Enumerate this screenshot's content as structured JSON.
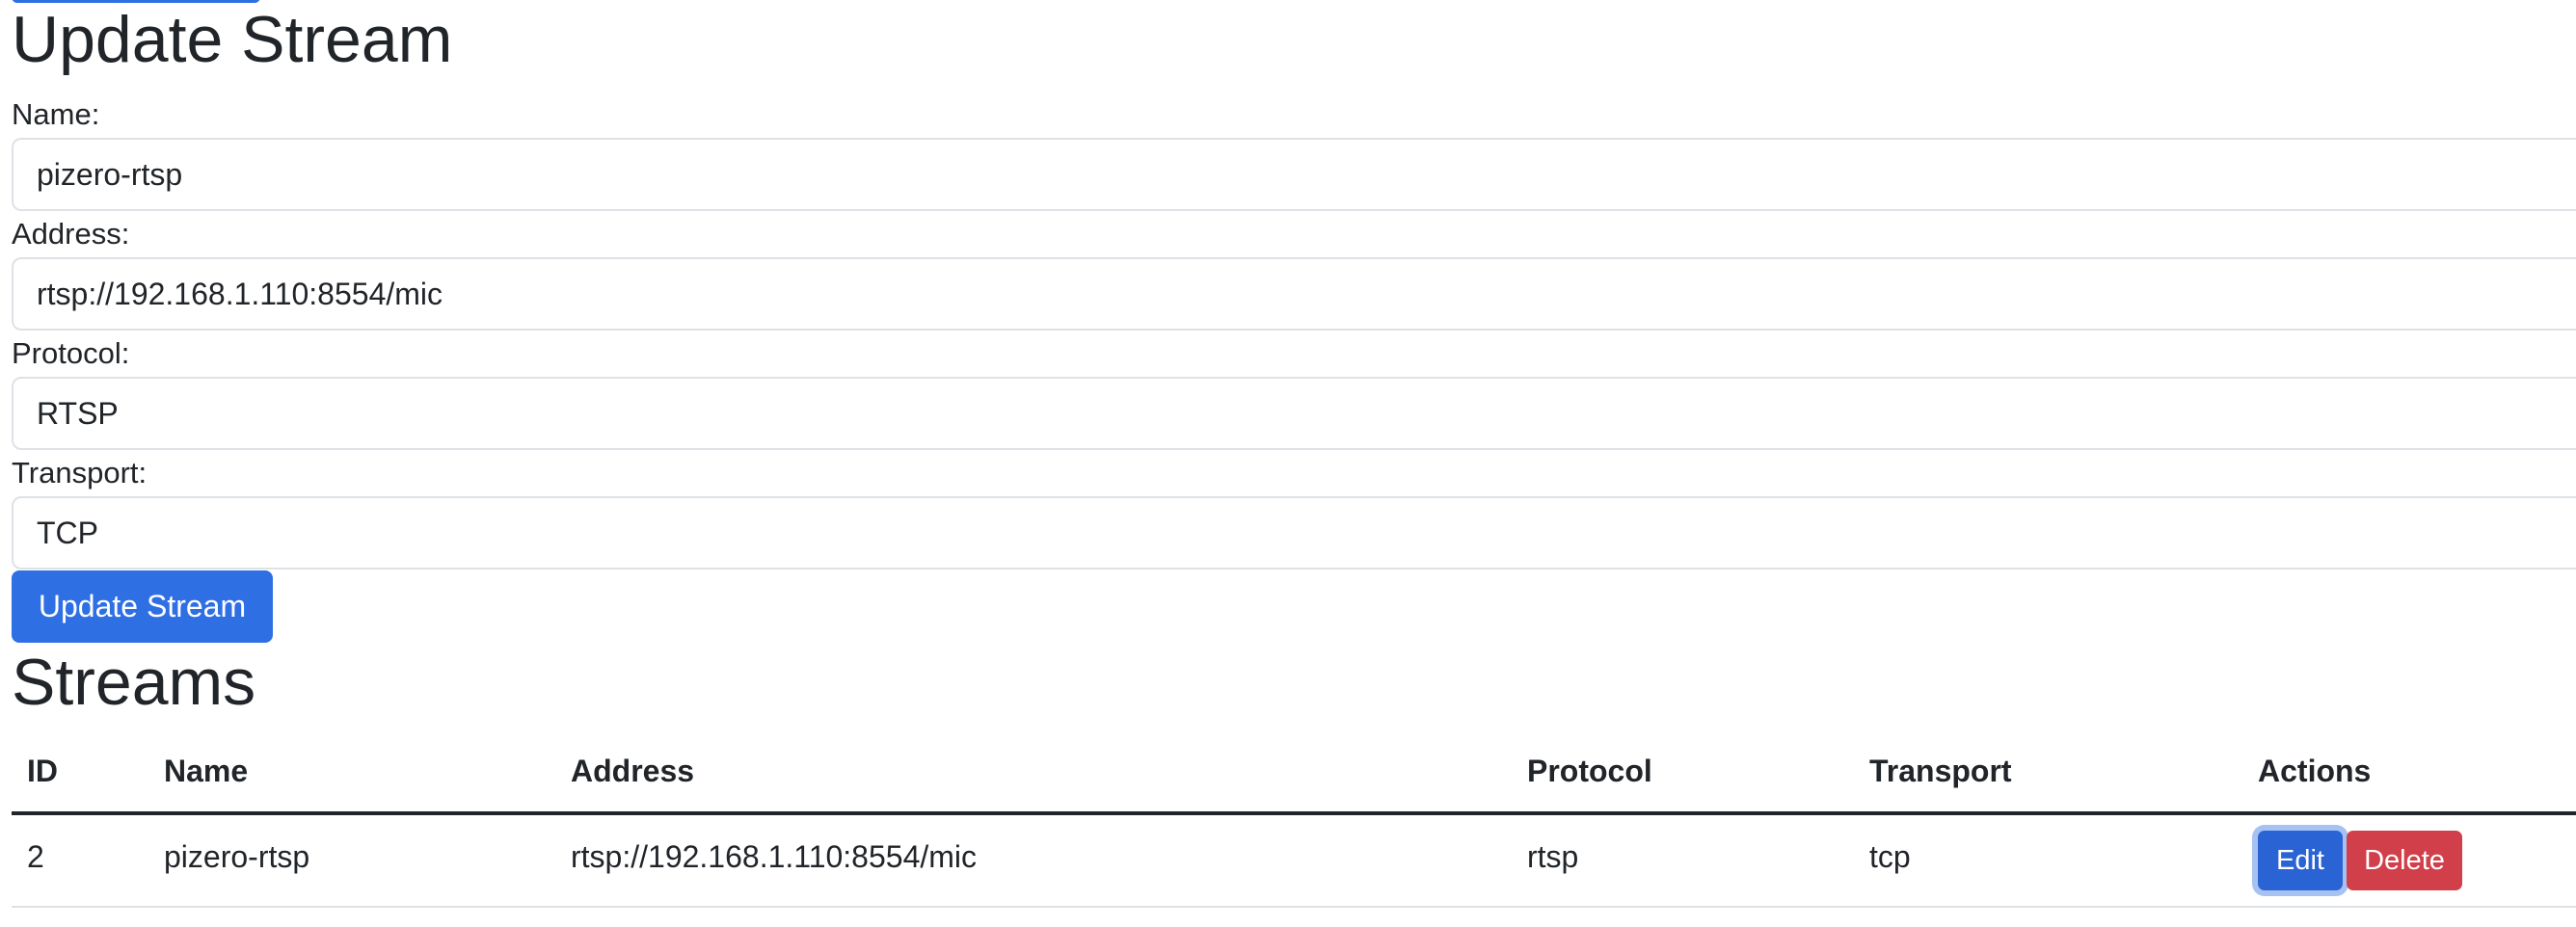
{
  "form": {
    "title": "Update Stream",
    "fields": [
      {
        "label": "Name:",
        "value": "pizero-rtsp"
      },
      {
        "label": "Address:",
        "value": "rtsp://192.168.1.110:8554/mic"
      },
      {
        "label": "Protocol:",
        "value": "RTSP"
      },
      {
        "label": "Transport:",
        "value": "TCP"
      }
    ],
    "submit_label": "Update Stream"
  },
  "streams": {
    "title": "Streams",
    "columns": [
      "ID",
      "Name",
      "Address",
      "Protocol",
      "Transport",
      "Actions"
    ],
    "rows": [
      {
        "id": "2",
        "name": "pizero-rtsp",
        "address": "rtsp://192.168.1.110:8554/mic",
        "protocol": "rtsp",
        "transport": "tcp",
        "edit_label": "Edit",
        "delete_label": "Delete"
      }
    ]
  },
  "colors": {
    "primary": "#2f6fe4",
    "danger": "#d13f4a",
    "text": "#212529"
  }
}
